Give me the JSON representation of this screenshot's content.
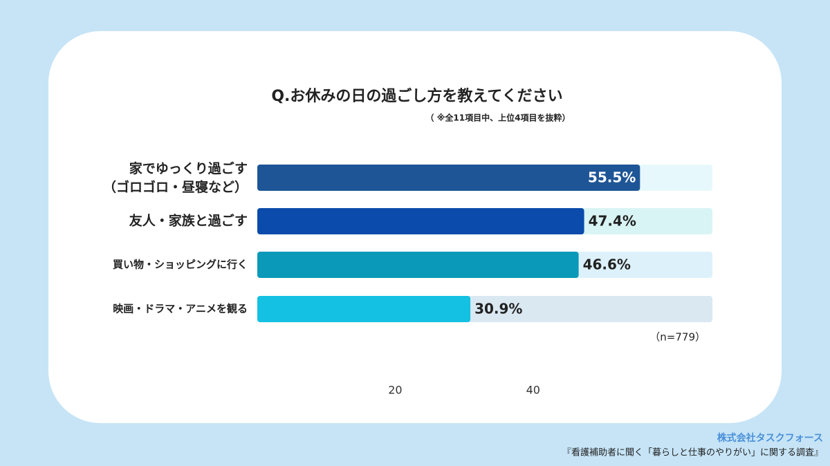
{
  "chart_data": {
    "type": "bar",
    "orientation": "horizontal",
    "title": "Q.お休みの日の過ごし方を教えてください",
    "subtitle": "（ ※全11項目中、上位4項目を抜粋）",
    "categories": [
      "家でゆっくり過ごす（ゴロゴロ・昼寝など）",
      "友人・家族と過ごす",
      "買い物・ショッピングに行く",
      "映画・ドラマ・アニメを観る"
    ],
    "values": [
      55.5,
      47.4,
      46.6,
      30.9
    ],
    "value_labels": [
      "55.5%",
      "47.4%",
      "46.6%",
      "30.9%"
    ],
    "colors": [
      "#1e5596",
      "#0a4bab",
      "#0a99b9",
      "#14c1e2"
    ],
    "track_colors": [
      "#e6f8fb",
      "#d9f4f4",
      "#ddf1fb",
      "#dae8f2"
    ],
    "xlim": [
      0,
      66
    ],
    "xticks": [
      20,
      40
    ],
    "note": "（n=779）",
    "source_org": "株式会社タスクフォース",
    "source": "『看護補助者に聞く「暮らしと仕事のやりがい」に関する調査』"
  }
}
